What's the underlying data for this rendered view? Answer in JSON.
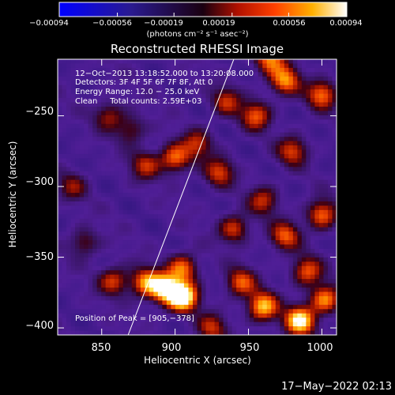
{
  "chart_data": {
    "type": "heatmap",
    "title": "Reconstructed RHESSI Image",
    "xlabel": "Heliocentric X (arcsec)",
    "ylabel": "Heliocentric Y (arcsec)",
    "xlim": [
      820,
      1010
    ],
    "ylim": [
      -405,
      -210
    ],
    "x_ticks": [
      850,
      900,
      950,
      1000
    ],
    "y_ticks": [
      -250,
      -300,
      -350,
      -400
    ],
    "x_tick_labels": [
      "850",
      "900",
      "950",
      "1000"
    ],
    "y_tick_labels": [
      "−250",
      "−300",
      "−350",
      "−400"
    ],
    "colorbar": {
      "range": [
        -0.00094,
        0.00094
      ],
      "tick_labels": [
        "−0.00094",
        "−0.00056",
        "−0.00019",
        "0.00019",
        "0.00056",
        "0.00094"
      ],
      "units": "(photons cm⁻² s⁻¹ asec⁻²)"
    },
    "annotations": [
      "12−Oct−2013 13:18:52.000 to 13:20:08.000",
      "Detectors: 3F 4F 5F 6F 7F 8F, Att 0",
      "Energy Range: 12.0 − 25.0 keV",
      "Clean     Total counts: 2.59E+03"
    ],
    "peak_label": "Position of Peak = [905,−378]",
    "peak": [
      905,
      -378
    ],
    "limb_line": {
      "x": [
        868,
        940
      ],
      "y": [
        -405,
        -210
      ]
    },
    "bright_sources": [
      {
        "x": 905,
        "y": -378,
        "v": 1.0
      },
      {
        "x": 893,
        "y": -372,
        "v": 0.8
      },
      {
        "x": 880,
        "y": -368,
        "v": 0.6
      },
      {
        "x": 858,
        "y": -367,
        "v": 0.45
      },
      {
        "x": 905,
        "y": -358,
        "v": 0.55
      },
      {
        "x": 960,
        "y": -385,
        "v": 0.7
      },
      {
        "x": 985,
        "y": -395,
        "v": 0.85
      },
      {
        "x": 945,
        "y": -368,
        "v": 0.5
      },
      {
        "x": 1002,
        "y": -380,
        "v": 0.6
      },
      {
        "x": 990,
        "y": -360,
        "v": 0.5
      },
      {
        "x": 1000,
        "y": -320,
        "v": 0.55
      },
      {
        "x": 975,
        "y": -335,
        "v": 0.5
      },
      {
        "x": 940,
        "y": -330,
        "v": 0.45
      },
      {
        "x": 960,
        "y": -310,
        "v": 0.4
      },
      {
        "x": 1000,
        "y": -235,
        "v": 0.55
      },
      {
        "x": 975,
        "y": -225,
        "v": 0.6
      },
      {
        "x": 955,
        "y": -250,
        "v": 0.5
      },
      {
        "x": 980,
        "y": -275,
        "v": 0.45
      },
      {
        "x": 965,
        "y": -210,
        "v": 0.55
      },
      {
        "x": 900,
        "y": -280,
        "v": 0.55
      },
      {
        "x": 880,
        "y": -285,
        "v": 0.4
      },
      {
        "x": 930,
        "y": -290,
        "v": 0.45
      },
      {
        "x": 915,
        "y": -270,
        "v": 0.4
      },
      {
        "x": 855,
        "y": -250,
        "v": 0.35
      },
      {
        "x": 870,
        "y": -260,
        "v": 0.3
      },
      {
        "x": 935,
        "y": -240,
        "v": 0.4
      },
      {
        "x": 838,
        "y": -340,
        "v": 0.3
      },
      {
        "x": 830,
        "y": -300,
        "v": 0.3
      },
      {
        "x": 925,
        "y": -400,
        "v": 0.4
      }
    ]
  },
  "footer": {
    "timestamp": "17−May−2022 02:13"
  }
}
